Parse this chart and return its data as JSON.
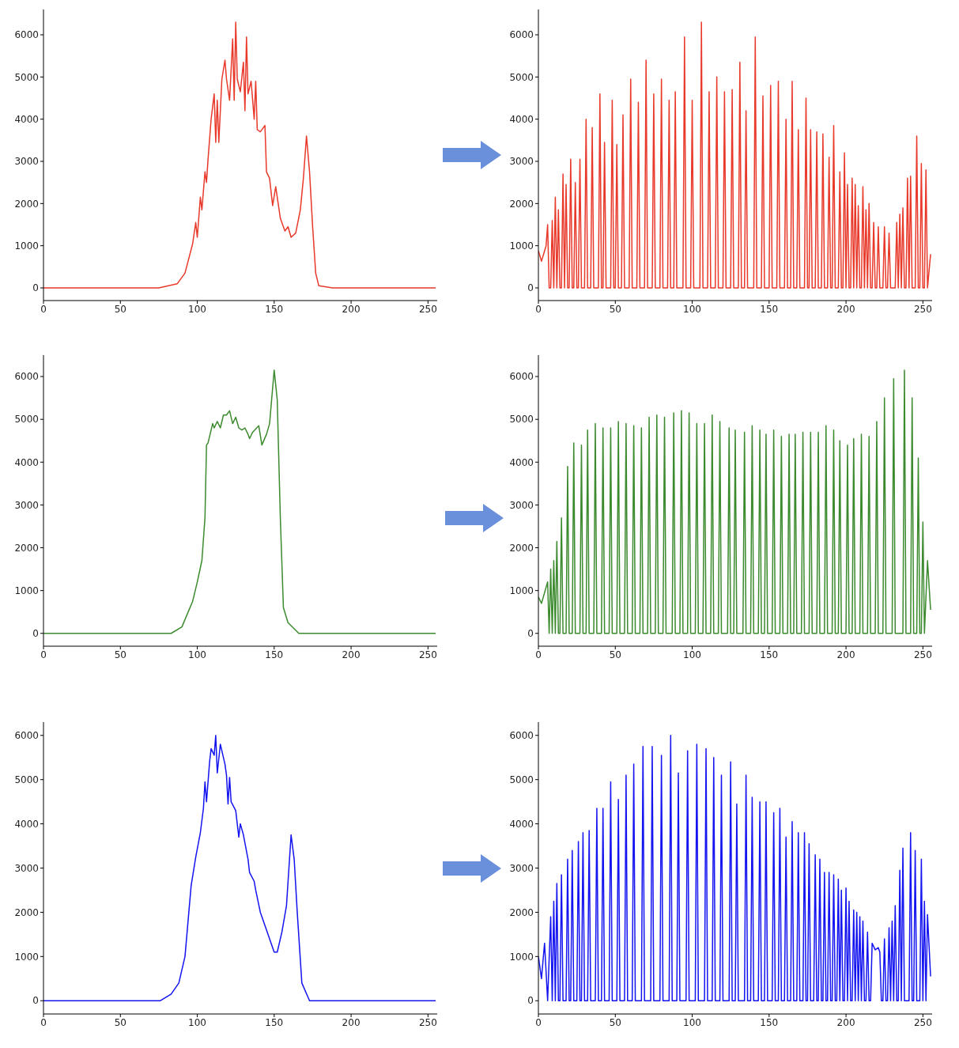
{
  "chart_data": [
    {
      "type": "line",
      "color": "#e8392b",
      "xlim": [
        0,
        256
      ],
      "xticks": [
        0,
        50,
        100,
        150,
        200,
        250
      ],
      "ylim": [
        -300,
        6600
      ],
      "yticks": [
        0,
        1000,
        2000,
        3000,
        4000,
        5000,
        6000
      ],
      "x": [
        0,
        75,
        87,
        92,
        97,
        99,
        100,
        102,
        103,
        105,
        106,
        107,
        109,
        111,
        112,
        113,
        114,
        116,
        118,
        119,
        121,
        123,
        124,
        125,
        126,
        128,
        130,
        131,
        132,
        133,
        135,
        137,
        138,
        139,
        141,
        144,
        145,
        147,
        149,
        151,
        153,
        154,
        157,
        159,
        161,
        164,
        167,
        169,
        171,
        173,
        175,
        177,
        179,
        188,
        255
      ],
      "values": [
        0,
        0,
        100,
        350,
        1050,
        1550,
        1200,
        2150,
        1850,
        2750,
        2500,
        3050,
        4000,
        4600,
        3450,
        4450,
        3450,
        4950,
        5400,
        4950,
        4450,
        5900,
        4450,
        6300,
        4950,
        4650,
        5350,
        4200,
        5950,
        4600,
        4900,
        4000,
        4900,
        3750,
        3700,
        3850,
        2750,
        2600,
        1950,
        2400,
        1900,
        1650,
        1350,
        1450,
        1200,
        1300,
        1850,
        2600,
        3600,
        2750,
        1450,
        350,
        50,
        0,
        0
      ]
    },
    {
      "type": "line",
      "color": "#e8392b",
      "xlim": [
        0,
        256
      ],
      "xticks": [
        0,
        50,
        100,
        150,
        200,
        250
      ],
      "ylim": [
        -300,
        6600
      ],
      "yticks": [
        0,
        1000,
        2000,
        3000,
        4000,
        5000,
        6000
      ],
      "x": [
        0,
        2,
        5,
        6,
        7,
        8,
        9,
        10,
        11,
        12,
        13,
        14,
        15,
        16,
        17,
        18,
        19,
        20,
        21,
        22,
        23,
        24,
        25,
        26,
        27,
        28,
        30,
        31,
        32,
        34,
        35,
        36,
        39,
        40,
        41,
        42,
        43,
        44,
        47,
        48,
        49,
        50,
        51,
        52,
        54,
        55,
        56,
        59,
        60,
        61,
        64,
        65,
        66,
        69,
        70,
        71,
        74,
        75,
        76,
        79,
        80,
        81,
        84,
        85,
        86,
        88,
        89,
        90,
        94,
        95,
        96,
        99,
        100,
        101,
        105,
        106,
        107,
        110,
        111,
        112,
        115,
        116,
        117,
        120,
        121,
        122,
        125,
        126,
        127,
        130,
        131,
        132,
        134,
        135,
        136,
        140,
        141,
        142,
        145,
        146,
        147,
        150,
        151,
        152,
        155,
        156,
        157,
        160,
        161,
        162,
        164,
        165,
        166,
        168,
        169,
        170,
        173,
        174,
        175,
        176,
        177,
        178,
        180,
        181,
        182,
        184,
        185,
        186,
        188,
        189,
        190,
        191,
        192,
        193,
        195,
        196,
        197,
        198,
        199,
        200,
        201,
        202,
        203,
        204,
        205,
        206,
        207,
        208,
        209,
        210,
        211,
        212,
        213,
        214,
        215,
        216,
        217,
        218,
        219,
        220,
        221,
        222,
        224,
        225,
        226,
        227,
        228,
        229,
        232,
        233,
        234,
        235,
        236,
        237,
        238,
        239,
        240,
        241,
        242,
        243,
        245,
        246,
        247,
        248,
        249,
        250,
        251,
        252,
        253,
        255
      ],
      "values": [
        880,
        630,
        1000,
        1500,
        0,
        0,
        1600,
        0,
        2150,
        0,
        1850,
        0,
        0,
        2700,
        0,
        2450,
        0,
        0,
        3050,
        0,
        0,
        2500,
        0,
        0,
        3050,
        0,
        0,
        4000,
        0,
        0,
        3800,
        0,
        0,
        4600,
        0,
        0,
        3450,
        0,
        0,
        4450,
        0,
        0,
        3400,
        0,
        0,
        4100,
        0,
        0,
        4950,
        0,
        0,
        4400,
        0,
        0,
        5400,
        0,
        0,
        4600,
        0,
        0,
        4950,
        0,
        0,
        4450,
        0,
        0,
        4650,
        0,
        0,
        5950,
        0,
        0,
        4450,
        0,
        0,
        6300,
        0,
        0,
        4650,
        0,
        0,
        5000,
        0,
        0,
        4650,
        0,
        0,
        4700,
        0,
        0,
        5350,
        0,
        0,
        4200,
        0,
        0,
        5950,
        0,
        0,
        4550,
        0,
        0,
        4800,
        0,
        0,
        4900,
        0,
        0,
        4000,
        0,
        0,
        4900,
        0,
        0,
        3750,
        0,
        0,
        4500,
        0,
        0,
        3750,
        0,
        0,
        3700,
        0,
        0,
        3650,
        0,
        0,
        3100,
        0,
        0,
        3850,
        0,
        0,
        2750,
        0,
        0,
        3200,
        0,
        2450,
        0,
        0,
        2600,
        0,
        2450,
        0,
        1950,
        0,
        0,
        2400,
        0,
        1850,
        0,
        2000,
        0,
        0,
        1550,
        0,
        0,
        1450,
        0,
        0,
        1450,
        0,
        0,
        1300,
        0,
        0,
        1550,
        0,
        1750,
        0,
        1900,
        0,
        0,
        2600,
        0,
        2650,
        0,
        0,
        3600,
        0,
        0,
        2950,
        0,
        0,
        2800,
        0,
        800
      ]
    },
    {
      "type": "line",
      "color": "#3c8a2e",
      "xlim": [
        0,
        256
      ],
      "xticks": [
        0,
        50,
        100,
        150,
        200,
        250
      ],
      "ylim": [
        -300,
        6500
      ],
      "yticks": [
        0,
        1000,
        2000,
        3000,
        4000,
        5000,
        6000
      ],
      "x": [
        0,
        83,
        90,
        97,
        100,
        103,
        105,
        106,
        107,
        110,
        111,
        113,
        115,
        117,
        119,
        121,
        123,
        125,
        127,
        129,
        131,
        133,
        134,
        136,
        140,
        142,
        145,
        147,
        150,
        152,
        154,
        156,
        159,
        166,
        255
      ],
      "values": [
        0,
        0,
        150,
        750,
        1200,
        1700,
        2700,
        4400,
        4450,
        4900,
        4800,
        4950,
        4800,
        5100,
        5100,
        5200,
        4900,
        5050,
        4800,
        4750,
        4800,
        4650,
        4550,
        4700,
        4850,
        4400,
        4650,
        4900,
        6150,
        5450,
        2700,
        600,
        250,
        0,
        0
      ]
    },
    {
      "type": "line",
      "color": "#3c8a2e",
      "xlim": [
        0,
        256
      ],
      "xticks": [
        0,
        50,
        100,
        150,
        200,
        250
      ],
      "ylim": [
        -300,
        6500
      ],
      "yticks": [
        0,
        1000,
        2000,
        3000,
        4000,
        5000,
        6000
      ],
      "x": [
        0,
        2,
        6,
        7,
        8,
        9,
        10,
        11,
        12,
        13,
        14,
        15,
        16,
        18,
        19,
        20,
        22,
        23,
        24,
        27,
        28,
        29,
        31,
        32,
        33,
        36,
        37,
        38,
        41,
        42,
        43,
        46,
        47,
        48,
        51,
        52,
        53,
        56,
        57,
        58,
        61,
        62,
        63,
        66,
        67,
        68,
        71,
        72,
        73,
        76,
        77,
        78,
        81,
        82,
        83,
        87,
        88,
        89,
        92,
        93,
        94,
        97,
        98,
        99,
        102,
        103,
        104,
        107,
        108,
        109,
        112,
        113,
        114,
        117,
        118,
        119,
        123,
        124,
        125,
        127,
        128,
        129,
        133,
        134,
        135,
        138,
        139,
        140,
        143,
        144,
        145,
        147,
        148,
        149,
        152,
        153,
        154,
        157,
        158,
        159,
        162,
        163,
        164,
        166,
        167,
        168,
        171,
        172,
        173,
        176,
        177,
        178,
        181,
        182,
        183,
        186,
        187,
        188,
        191,
        192,
        193,
        195,
        196,
        197,
        200,
        201,
        202,
        204,
        205,
        206,
        209,
        210,
        211,
        214,
        215,
        216,
        219,
        220,
        221,
        224,
        225,
        226,
        230,
        231,
        232,
        237,
        238,
        239,
        242,
        243,
        244,
        246,
        247,
        248,
        249,
        250,
        251,
        253,
        255
      ],
      "values": [
        850,
        700,
        1200,
        0,
        1500,
        0,
        1700,
        0,
        2150,
        0,
        0,
        2700,
        0,
        0,
        3900,
        0,
        0,
        4450,
        0,
        0,
        4400,
        0,
        0,
        4750,
        0,
        0,
        4900,
        0,
        0,
        4800,
        0,
        0,
        4800,
        0,
        0,
        4950,
        0,
        0,
        4900,
        0,
        0,
        4850,
        0,
        0,
        4800,
        0,
        0,
        5050,
        0,
        0,
        5100,
        0,
        0,
        5050,
        0,
        0,
        5150,
        0,
        0,
        5200,
        0,
        0,
        5150,
        0,
        0,
        4900,
        0,
        0,
        4900,
        0,
        0,
        5100,
        0,
        0,
        4950,
        0,
        0,
        4800,
        0,
        0,
        4750,
        0,
        0,
        4700,
        0,
        0,
        4850,
        0,
        0,
        4750,
        0,
        0,
        4650,
        0,
        0,
        4750,
        0,
        0,
        4600,
        0,
        0,
        4650,
        0,
        0,
        4650,
        0,
        0,
        4700,
        0,
        0,
        4700,
        0,
        0,
        4700,
        0,
        0,
        4850,
        0,
        0,
        4750,
        0,
        0,
        4500,
        0,
        0,
        4400,
        0,
        0,
        4550,
        0,
        0,
        4650,
        0,
        0,
        4600,
        0,
        0,
        4950,
        0,
        0,
        5500,
        0,
        0,
        5950,
        0,
        0,
        6150,
        0,
        0,
        5500,
        0,
        0,
        4100,
        0,
        0,
        2600,
        0,
        1700,
        550
      ]
    },
    {
      "type": "line",
      "color": "#1414f0",
      "xlim": [
        0,
        256
      ],
      "xticks": [
        0,
        50,
        100,
        150,
        200,
        250
      ],
      "ylim": [
        -300,
        6300
      ],
      "yticks": [
        0,
        1000,
        2000,
        3000,
        4000,
        5000,
        6000
      ],
      "x": [
        0,
        76,
        83,
        88,
        92,
        96,
        99,
        102,
        104,
        105,
        106,
        108,
        109,
        111,
        112,
        113,
        115,
        118,
        119,
        120,
        121,
        122,
        125,
        127,
        128,
        130,
        133,
        134,
        137,
        138,
        141,
        145,
        150,
        152,
        155,
        158,
        161,
        163,
        165,
        168,
        173,
        255
      ],
      "values": [
        0,
        0,
        150,
        400,
        1000,
        2600,
        3250,
        3800,
        4350,
        4950,
        4500,
        5400,
        5700,
        5550,
        6000,
        5150,
        5800,
        5350,
        5100,
        4450,
        5050,
        4500,
        4300,
        3700,
        4000,
        3750,
        3200,
        2900,
        2700,
        2500,
        2000,
        1600,
        1100,
        1100,
        1550,
        2150,
        3750,
        3200,
        2000,
        400,
        0,
        0
      ]
    },
    {
      "type": "line",
      "color": "#1414f0",
      "xlim": [
        0,
        256
      ],
      "xticks": [
        0,
        50,
        100,
        150,
        200,
        250
      ],
      "ylim": [
        -300,
        6300
      ],
      "yticks": [
        0,
        1000,
        2000,
        3000,
        4000,
        5000,
        6000
      ],
      "x": [
        0,
        2,
        4,
        6,
        8,
        9,
        10,
        11,
        12,
        13,
        14,
        15,
        16,
        18,
        19,
        20,
        21,
        22,
        23,
        25,
        26,
        27,
        28,
        29,
        30,
        32,
        33,
        34,
        37,
        38,
        39,
        41,
        42,
        43,
        46,
        47,
        48,
        51,
        52,
        53,
        56,
        57,
        58,
        61,
        62,
        63,
        67,
        68,
        69,
        73,
        74,
        75,
        79,
        80,
        81,
        85,
        86,
        87,
        90,
        91,
        92,
        96,
        97,
        98,
        102,
        103,
        104,
        108,
        109,
        110,
        113,
        114,
        115,
        118,
        119,
        120,
        124,
        125,
        126,
        128,
        129,
        130,
        134,
        135,
        136,
        138,
        139,
        140,
        143,
        144,
        145,
        147,
        148,
        149,
        152,
        153,
        154,
        156,
        157,
        158,
        160,
        161,
        162,
        164,
        165,
        166,
        168,
        169,
        170,
        172,
        173,
        174,
        175,
        176,
        177,
        179,
        180,
        181,
        182,
        183,
        184,
        185,
        186,
        187,
        188,
        189,
        190,
        191,
        192,
        193,
        194,
        195,
        196,
        197,
        198,
        199,
        200,
        201,
        202,
        203,
        204,
        205,
        206,
        207,
        208,
        209,
        210,
        211,
        212,
        213,
        214,
        215,
        216,
        217,
        219,
        221,
        222,
        223,
        224,
        225,
        226,
        227,
        228,
        229,
        230,
        231,
        232,
        233,
        234,
        235,
        236,
        237,
        238,
        241,
        242,
        243,
        244,
        245,
        246,
        248,
        249,
        250,
        251,
        252,
        253,
        255
      ],
      "values": [
        1000,
        500,
        1300,
        0,
        1900,
        0,
        2250,
        0,
        2650,
        0,
        0,
        2850,
        0,
        0,
        3200,
        0,
        0,
        3400,
        0,
        0,
        3600,
        0,
        0,
        3800,
        0,
        0,
        3850,
        0,
        0,
        4350,
        0,
        0,
        4350,
        0,
        0,
        4950,
        0,
        0,
        4550,
        0,
        0,
        5100,
        0,
        0,
        5350,
        0,
        0,
        5750,
        0,
        0,
        5750,
        0,
        0,
        5550,
        0,
        0,
        6000,
        0,
        0,
        5150,
        0,
        0,
        5650,
        0,
        0,
        5800,
        0,
        0,
        5700,
        0,
        0,
        5500,
        0,
        0,
        5100,
        0,
        0,
        5400,
        0,
        0,
        4450,
        0,
        0,
        5100,
        0,
        0,
        4600,
        0,
        0,
        4500,
        0,
        0,
        4500,
        0,
        0,
        4250,
        0,
        0,
        4350,
        0,
        0,
        3700,
        0,
        0,
        4050,
        0,
        0,
        3800,
        0,
        0,
        3800,
        0,
        0,
        3550,
        0,
        0,
        3300,
        0,
        0,
        3200,
        0,
        0,
        2900,
        0,
        0,
        2900,
        0,
        0,
        2850,
        0,
        0,
        2750,
        0,
        2500,
        0,
        0,
        2550,
        0,
        2250,
        0,
        0,
        2050,
        0,
        2000,
        0,
        1900,
        0,
        1800,
        0,
        0,
        1550,
        0,
        0,
        1300,
        1150,
        1200,
        1100,
        0,
        0,
        1400,
        0,
        0,
        1650,
        0,
        1800,
        0,
        2150,
        0,
        0,
        2950,
        0,
        3450,
        0,
        0,
        3800,
        0,
        0,
        3400,
        0,
        0,
        3200,
        0,
        2250,
        0,
        1950,
        550
      ]
    }
  ]
}
